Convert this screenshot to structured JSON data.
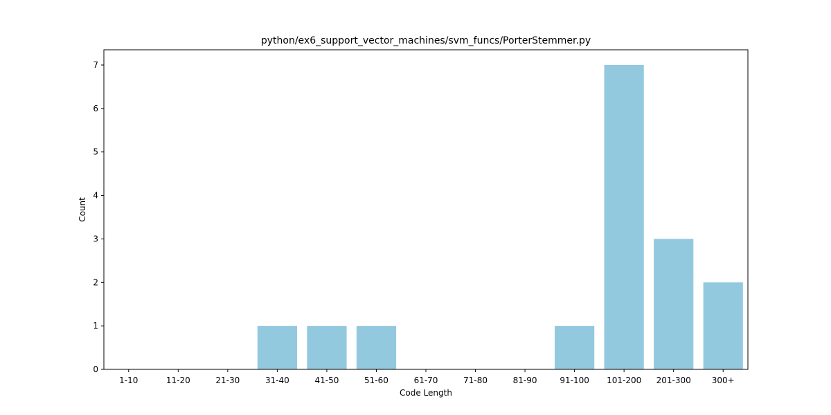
{
  "chart_data": {
    "type": "bar",
    "title": "python/ex6_support_vector_machines/svm_funcs/PorterStemmer.py",
    "xlabel": "Code Length",
    "ylabel": "Count",
    "categories": [
      "1-10",
      "11-20",
      "21-30",
      "31-40",
      "41-50",
      "51-60",
      "61-70",
      "71-80",
      "81-90",
      "91-100",
      "101-200",
      "201-300",
      "300+"
    ],
    "values": [
      0,
      0,
      0,
      1,
      1,
      1,
      0,
      0,
      0,
      1,
      7,
      3,
      2
    ],
    "ylim": [
      0,
      7.35
    ],
    "yticks": [
      0,
      1,
      2,
      3,
      4,
      5,
      6,
      7
    ],
    "bar_color": "#92c9df",
    "grid": false,
    "legend": "none"
  }
}
